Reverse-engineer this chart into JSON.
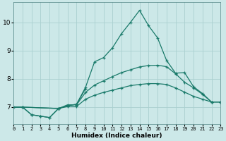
{
  "title": "",
  "xlabel": "Humidex (Indice chaleur)",
  "background_color": "#cce8e8",
  "grid_color": "#aad0d0",
  "line_color": "#1a7a6a",
  "xlim": [
    0,
    23
  ],
  "ylim": [
    6.4,
    10.7
  ],
  "yticks": [
    7,
    8,
    9,
    10
  ],
  "xticks": [
    0,
    1,
    2,
    3,
    4,
    5,
    6,
    7,
    8,
    9,
    10,
    11,
    12,
    13,
    14,
    15,
    16,
    17,
    18,
    19,
    20,
    21,
    22,
    23
  ],
  "series": [
    {
      "x": [
        0,
        1,
        2,
        3,
        4,
        5,
        6,
        7,
        8,
        9,
        10,
        11,
        12,
        13,
        14,
        15,
        16,
        17,
        18,
        19,
        20,
        21,
        22,
        23
      ],
      "y": [
        7.0,
        7.0,
        6.73,
        6.68,
        6.63,
        6.95,
        7.05,
        7.1,
        7.7,
        8.6,
        8.75,
        9.1,
        9.6,
        10.0,
        10.42,
        9.88,
        9.45,
        8.65,
        8.2,
        8.22,
        7.72,
        7.48,
        7.18,
        7.18
      ]
    },
    {
      "x": [
        0,
        1,
        2,
        3,
        4,
        5,
        6,
        7,
        8
      ],
      "y": [
        7.0,
        7.0,
        6.73,
        6.68,
        6.63,
        6.95,
        7.05,
        7.1,
        7.65
      ]
    },
    {
      "x": [
        0,
        1,
        5,
        6,
        7,
        8,
        9,
        10,
        11,
        12,
        13,
        14,
        15,
        16,
        17,
        18,
        19,
        20,
        21,
        22,
        23
      ],
      "y": [
        7.0,
        7.0,
        6.95,
        7.08,
        7.08,
        7.52,
        7.78,
        7.93,
        8.08,
        8.22,
        8.32,
        8.42,
        8.47,
        8.48,
        8.43,
        8.18,
        7.88,
        7.68,
        7.45,
        7.18,
        7.18
      ]
    },
    {
      "x": [
        0,
        1,
        5,
        6,
        7,
        8,
        9,
        10,
        11,
        12,
        13,
        14,
        15,
        16,
        17,
        18,
        19,
        20,
        21,
        22,
        23
      ],
      "y": [
        7.0,
        7.0,
        6.95,
        7.02,
        7.02,
        7.28,
        7.42,
        7.52,
        7.6,
        7.68,
        7.76,
        7.8,
        7.83,
        7.83,
        7.8,
        7.68,
        7.53,
        7.38,
        7.28,
        7.18,
        7.18
      ]
    }
  ]
}
